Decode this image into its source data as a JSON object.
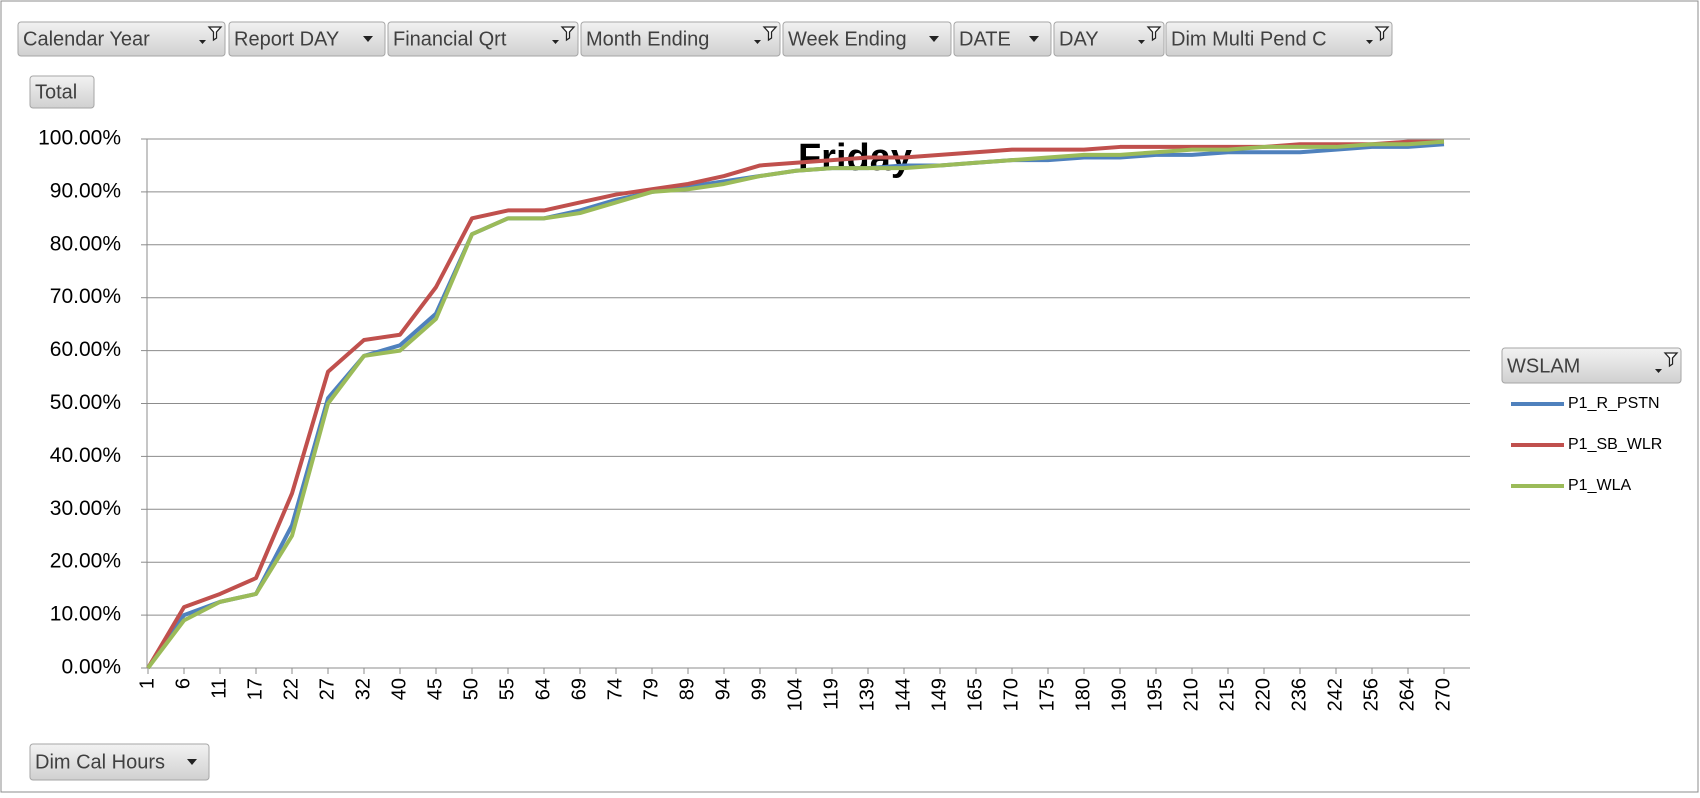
{
  "filter_fields": [
    {
      "label": "Calendar Year",
      "filtered": true
    },
    {
      "label": "Report DAY",
      "filtered": false
    },
    {
      "label": "Financial Qrt",
      "filtered": true
    },
    {
      "label": "Month Ending",
      "filtered": true
    },
    {
      "label": "Week Ending",
      "filtered": false
    },
    {
      "label": "DATE",
      "filtered": false
    },
    {
      "label": "DAY",
      "filtered": true
    },
    {
      "label": "Dim Multi Pend C",
      "filtered": true
    }
  ],
  "value_field": "Total",
  "axis_field": "Dim Cal Hours",
  "chart_data": {
    "type": "line",
    "title": "Friday",
    "legend_title": "WSLAM",
    "categories": [
      "1",
      "6",
      "11",
      "17",
      "22",
      "27",
      "32",
      "40",
      "45",
      "50",
      "55",
      "64",
      "69",
      "74",
      "79",
      "89",
      "94",
      "99",
      "104",
      "119",
      "139",
      "144",
      "149",
      "165",
      "170",
      "175",
      "180",
      "190",
      "195",
      "210",
      "215",
      "220",
      "236",
      "242",
      "256",
      "264",
      "270"
    ],
    "series": [
      {
        "name": "P1_R_PSTN",
        "color": "#4f81bd",
        "values": [
          0,
          10,
          12.5,
          14,
          27,
          51,
          59,
          61,
          67,
          82,
          85,
          85,
          86.5,
          88.5,
          90,
          91,
          92,
          93,
          94,
          94.5,
          94.5,
          95,
          95,
          95.5,
          96,
          96,
          96.5,
          96.5,
          97,
          97,
          97.5,
          97.5,
          97.5,
          98,
          98.5,
          98.5,
          99
        ]
      },
      {
        "name": "P1_SB_WLR",
        "color": "#c0504d",
        "values": [
          0,
          11.5,
          14,
          17,
          33,
          56,
          62,
          63,
          72,
          85,
          86.5,
          86.5,
          88,
          89.5,
          90.5,
          91.5,
          93,
          95,
          95.5,
          96,
          96.5,
          96.5,
          97,
          97.5,
          98,
          98,
          98,
          98.5,
          98.5,
          98.5,
          98.5,
          98.5,
          99,
          99,
          99,
          99.5,
          99.5
        ]
      },
      {
        "name": "P1_WLA",
        "color": "#9bbb59",
        "values": [
          0,
          9,
          12.5,
          14,
          25,
          50,
          59,
          60,
          66,
          82,
          85,
          85,
          86,
          88,
          90,
          90.5,
          91.5,
          93,
          94,
          94.5,
          94.5,
          94.5,
          95,
          95.5,
          96,
          96.5,
          97,
          97,
          97.5,
          98,
          98,
          98.5,
          98.5,
          98.5,
          99,
          99,
          99.5
        ]
      }
    ],
    "ylim": [
      0,
      100
    ],
    "yticks": [
      {
        "value": 0,
        "label": "0.00%"
      },
      {
        "value": 10,
        "label": "10.00%"
      },
      {
        "value": 20,
        "label": "20.00%"
      },
      {
        "value": 30,
        "label": "30.00%"
      },
      {
        "value": 40,
        "label": "40.00%"
      },
      {
        "value": 50,
        "label": "50.00%"
      },
      {
        "value": 60,
        "label": "60.00%"
      },
      {
        "value": 70,
        "label": "70.00%"
      },
      {
        "value": 80,
        "label": "80.00%"
      },
      {
        "value": 90,
        "label": "90.00%"
      },
      {
        "value": 100,
        "label": "100.00%"
      }
    ],
    "grid": true,
    "legend": "right"
  }
}
